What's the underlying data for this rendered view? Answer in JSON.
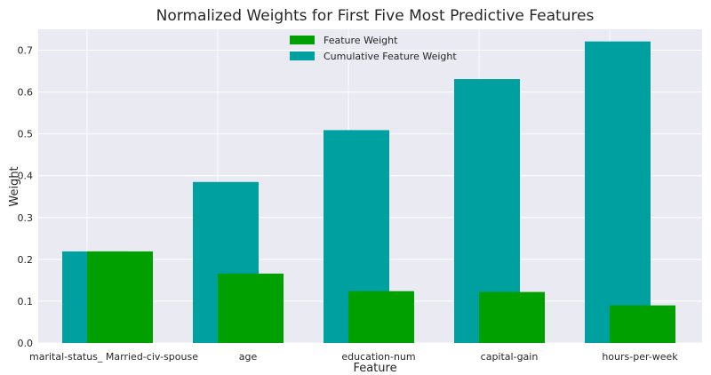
{
  "chart_data": {
    "type": "bar",
    "title": "Normalized Weights for First Five Most Predictive Features",
    "xlabel": "Feature",
    "ylabel": "Weight",
    "ylim": [
      0,
      0.75
    ],
    "yticks": [
      "0.0",
      "0.1",
      "0.2",
      "0.3",
      "0.4",
      "0.5",
      "0.6",
      "0.7"
    ],
    "grid": true,
    "legend_position": "top-center",
    "categories": [
      "marital-status_ Married-civ-spouse",
      "age",
      "education-num",
      "capital-gain",
      "hours-per-week"
    ],
    "series": [
      {
        "name": "Feature Weight",
        "color": "#00a000",
        "values": [
          0.219,
          0.166,
          0.124,
          0.122,
          0.09
        ]
      },
      {
        "name": "Cumulative Feature Weight",
        "color": "#00a0a0",
        "values": [
          0.219,
          0.385,
          0.509,
          0.631,
          0.721
        ]
      }
    ]
  }
}
